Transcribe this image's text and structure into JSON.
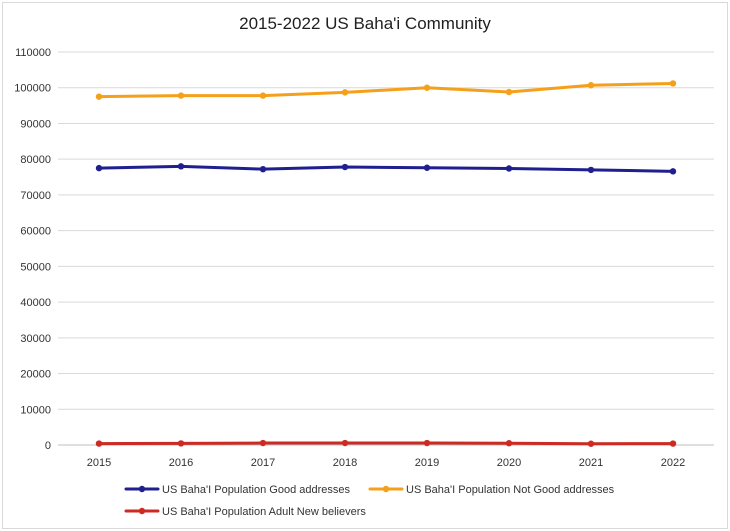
{
  "chart_data": {
    "type": "line",
    "title": "2015-2022 US Baha'i Community",
    "xlabel": "",
    "ylabel": "",
    "categories": [
      "2015",
      "2016",
      "2017",
      "2018",
      "2019",
      "2020",
      "2021",
      "2022"
    ],
    "ylim": [
      0,
      110000
    ],
    "yticks": [
      "0",
      "10000",
      "20000",
      "30000",
      "40000",
      "50000",
      "60000",
      "70000",
      "80000",
      "90000",
      "100000",
      "110000"
    ],
    "grid": true,
    "legend_position": "bottom",
    "series": [
      {
        "name": "US Baha'I Population Good addresses",
        "color": "#1f1f8f",
        "values": [
          77500,
          78000,
          77200,
          77800,
          77600,
          77400,
          77000,
          76600
        ]
      },
      {
        "name": "US Baha'I Population Not Good addresses",
        "color": "#f5a01a",
        "values": [
          97500,
          97800,
          97800,
          98700,
          100000,
          98800,
          100700,
          101200
        ]
      },
      {
        "name": "US Baha'I Population Adult New believers",
        "color": "#cc2a22",
        "values": [
          400,
          450,
          550,
          550,
          550,
          500,
          350,
          400
        ]
      }
    ]
  }
}
